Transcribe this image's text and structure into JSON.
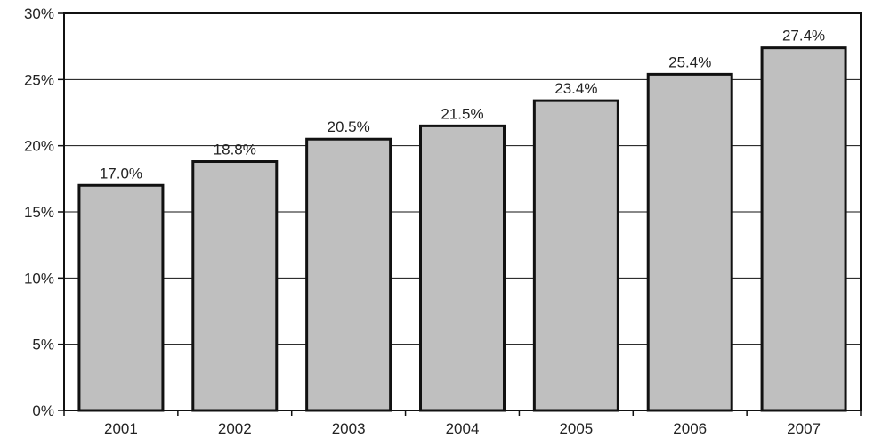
{
  "chart_data": {
    "type": "bar",
    "title": "",
    "xlabel": "",
    "ylabel": "",
    "categories": [
      "2001",
      "2002",
      "2003",
      "2004",
      "2005",
      "2006",
      "2007"
    ],
    "values": [
      17.0,
      18.8,
      20.5,
      21.5,
      23.4,
      25.4,
      27.4
    ],
    "value_labels": [
      "17.0%",
      "18.8%",
      "20.5%",
      "21.5%",
      "23.4%",
      "25.4%",
      "27.4%"
    ],
    "ylim": [
      0,
      30
    ],
    "yticks": [
      0,
      5,
      10,
      15,
      20,
      25,
      30
    ],
    "ytick_labels": [
      "0%",
      "5%",
      "10%",
      "15%",
      "20%",
      "25%",
      "30%"
    ],
    "grid": true,
    "legend": "none",
    "colors": {
      "bar_fill": "#bfbfbf",
      "bar_stroke": "#111111",
      "grid": "#111111",
      "frame": "#111111"
    }
  }
}
